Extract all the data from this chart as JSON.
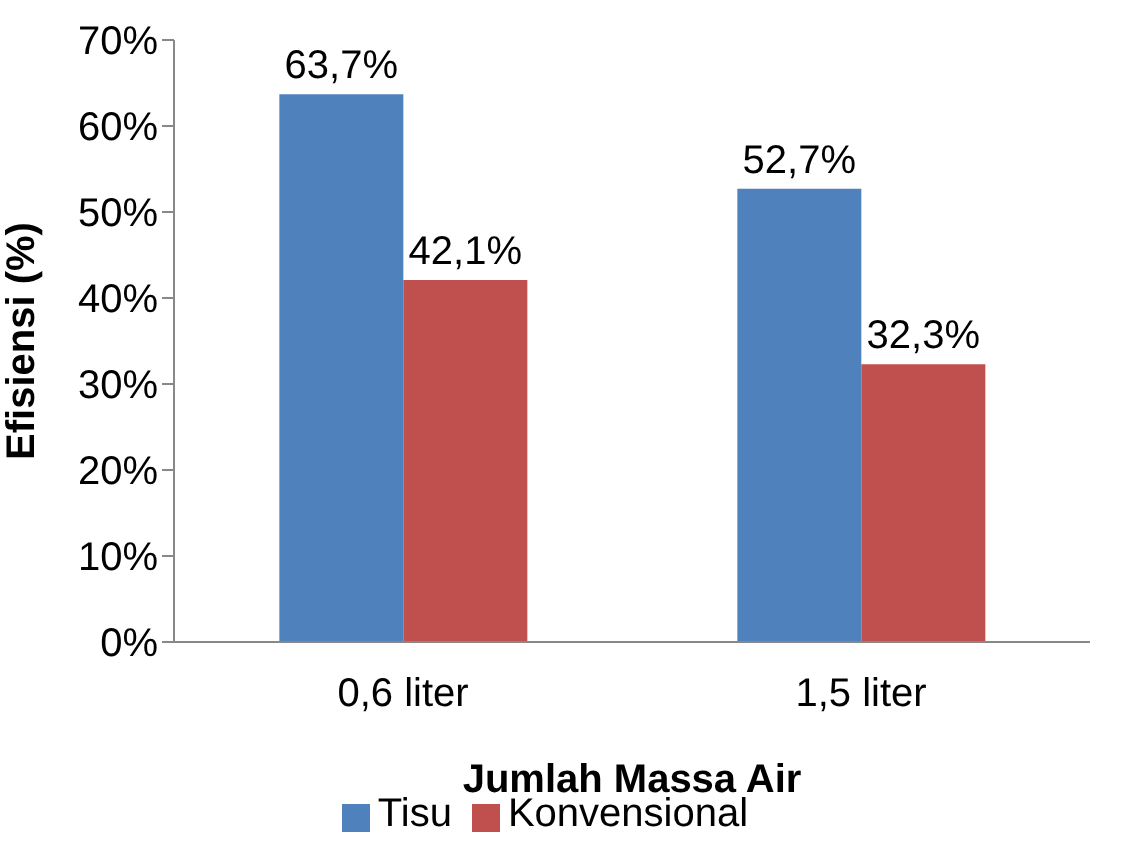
{
  "chart_data": {
    "type": "bar",
    "ylabel": "Efisiensi (%)",
    "xlabel": "Jumlah Massa Air",
    "categories": [
      "0,6 liter",
      "1,5 liter"
    ],
    "series": [
      {
        "name": "Tisu",
        "color": "#4f81bd",
        "values": [
          63.7,
          52.7
        ],
        "value_labels": [
          "63,7%",
          "52,7%"
        ]
      },
      {
        "name": "Konvensional",
        "color": "#c0504d",
        "values": [
          42.1,
          32.3
        ],
        "value_labels": [
          "42,1%",
          "32,3%"
        ]
      }
    ],
    "ylim": [
      0,
      70
    ],
    "yticks": [
      {
        "value": 0,
        "label": "0%"
      },
      {
        "value": 10,
        "label": "10%"
      },
      {
        "value": 20,
        "label": "20%"
      },
      {
        "value": 30,
        "label": "30%"
      },
      {
        "value": 40,
        "label": "40%"
      },
      {
        "value": 50,
        "label": "50%"
      },
      {
        "value": 60,
        "label": "60%"
      },
      {
        "value": 70,
        "label": "70%"
      }
    ],
    "grid": false,
    "legend": "bottom"
  }
}
